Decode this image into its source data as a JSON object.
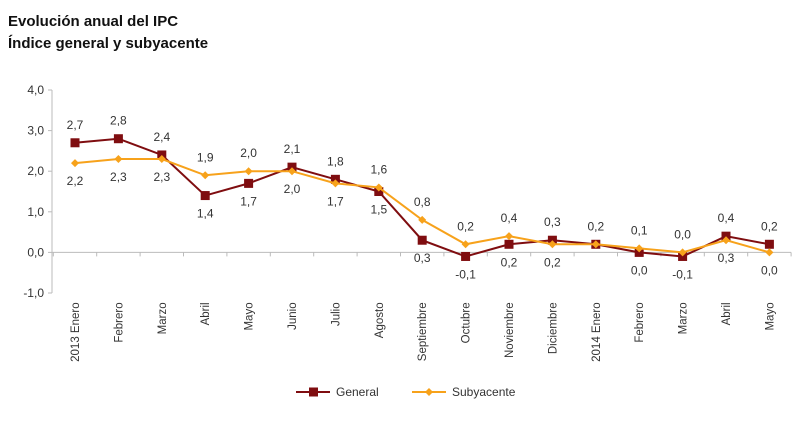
{
  "chart_data": {
    "type": "line",
    "title": "Evolución anual del IPC",
    "subtitle": "Índice general y subyacente",
    "categories": [
      "2013 Enero",
      "Febrero",
      "Marzo",
      "Abril",
      "Mayo",
      "Junio",
      "Julio",
      "Agosto",
      "Septiembre",
      "Octubre",
      "Noviembre",
      "Diciembre",
      "2014 Enero",
      "Febrero",
      "Marzo",
      "Abril",
      "Mayo"
    ],
    "series": [
      {
        "name": "General",
        "color": "#7f0d10",
        "marker": "square",
        "values": [
          2.7,
          2.8,
          2.4,
          1.4,
          1.7,
          2.1,
          1.8,
          1.5,
          0.3,
          -0.1,
          0.2,
          0.3,
          0.2,
          0.0,
          -0.1,
          0.4,
          0.2
        ]
      },
      {
        "name": "Subyacente",
        "color": "#f7a21b",
        "marker": "diamond",
        "values": [
          2.2,
          2.3,
          2.3,
          1.9,
          2.0,
          2.0,
          1.7,
          1.6,
          0.8,
          0.2,
          0.4,
          0.2,
          0.2,
          0.1,
          0.0,
          0.3,
          0.0
        ]
      }
    ],
    "ylim": [
      -1,
      4
    ],
    "yticks": [
      "4,0",
      "3,0",
      "2,0",
      "1,0",
      "0,0",
      "-1,0"
    ],
    "ytick_values": [
      4,
      3,
      2,
      1,
      0,
      -1
    ],
    "grid": false,
    "legend_position": "bottom",
    "decimal_separator": ","
  }
}
